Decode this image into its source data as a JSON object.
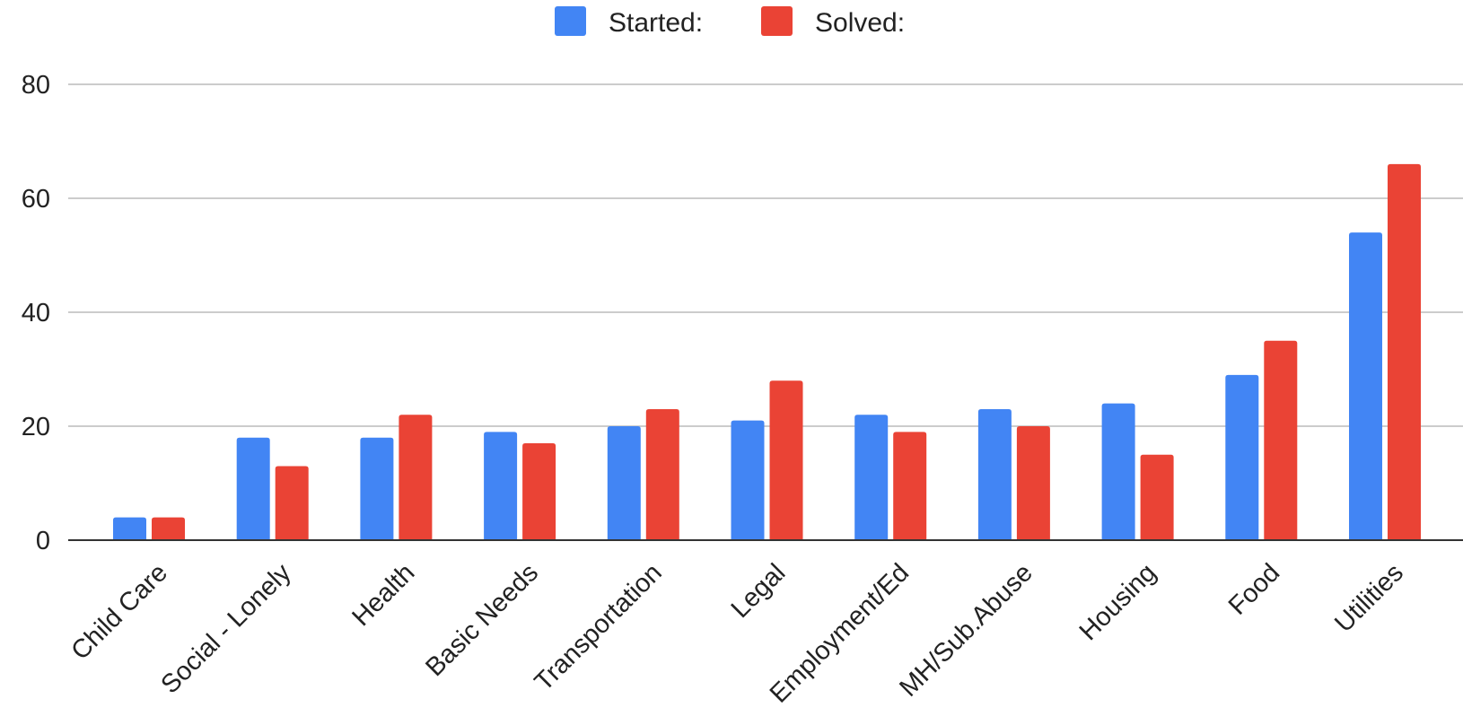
{
  "chart_data": {
    "type": "bar",
    "title": "",
    "xlabel": "",
    "ylabel": "",
    "categories": [
      "Child Care",
      "Social - Lonely",
      "Health",
      "Basic Needs",
      "Transportation",
      "Legal",
      "Employment/Ed",
      "MH/Sub.Abuse",
      "Housing",
      "Food",
      "Utilities"
    ],
    "series": [
      {
        "name": "Started:",
        "color": "#4285f4",
        "values": [
          4,
          18,
          18,
          19,
          20,
          21,
          22,
          23,
          24,
          29,
          54
        ]
      },
      {
        "name": "Solved:",
        "color": "#ea4335",
        "values": [
          4,
          13,
          22,
          17,
          23,
          28,
          19,
          20,
          15,
          35,
          66
        ]
      }
    ],
    "ylim": [
      0,
      80
    ],
    "yticks": [
      0,
      20,
      40,
      60,
      80
    ],
    "grid": true,
    "legend_position": "top-center"
  }
}
